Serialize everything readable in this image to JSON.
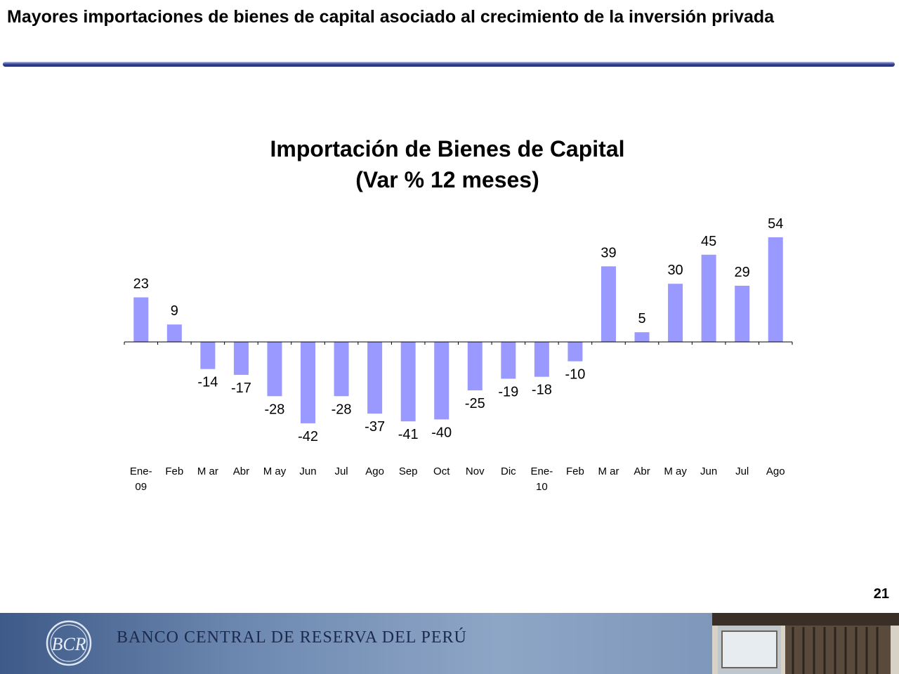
{
  "slide": {
    "title": "Mayores importaciones de bienes de capital asociado al crecimiento de la inversión privada",
    "page_number": "21"
  },
  "footer": {
    "bank_name": "BANCO CENTRAL DE RESERVA DEL PERÚ",
    "logo_monogram": "BCR"
  },
  "colors": {
    "bar": "#9999ff",
    "title_rule": "#2b3a84",
    "axis": "#000000",
    "footer": "#6a86b0"
  },
  "chart_data": {
    "type": "bar",
    "title": "Importación de Bienes de Capital",
    "subtitle": "(Var % 12 meses)",
    "categories": [
      [
        "Ene-",
        "09"
      ],
      [
        "Feb"
      ],
      [
        "M ar"
      ],
      [
        "Abr"
      ],
      [
        "M ay"
      ],
      [
        "Jun"
      ],
      [
        "Jul"
      ],
      [
        "Ago"
      ],
      [
        "Sep"
      ],
      [
        "Oct"
      ],
      [
        "Nov"
      ],
      [
        "Dic"
      ],
      [
        "Ene-",
        "10"
      ],
      [
        "Feb"
      ],
      [
        "M ar"
      ],
      [
        "Abr"
      ],
      [
        "M ay"
      ],
      [
        "Jun"
      ],
      [
        "Jul"
      ],
      [
        "Ago"
      ]
    ],
    "values": [
      23,
      9,
      -14,
      -17,
      -28,
      -42,
      -28,
      -37,
      -41,
      -40,
      -25,
      -19,
      -18,
      -10,
      39,
      5,
      30,
      45,
      29,
      54
    ],
    "data_labels": [
      "23",
      "9",
      "-14",
      "-17",
      "-28",
      "-42",
      "-28",
      "-37",
      "-41",
      "-40",
      "-25",
      "-19",
      "-18",
      "-10",
      "39",
      "5",
      "30",
      "45",
      "29",
      "54"
    ],
    "xlabel": "",
    "ylabel": "",
    "ylim": [
      -45,
      60
    ],
    "grid": false,
    "legend": "none"
  }
}
